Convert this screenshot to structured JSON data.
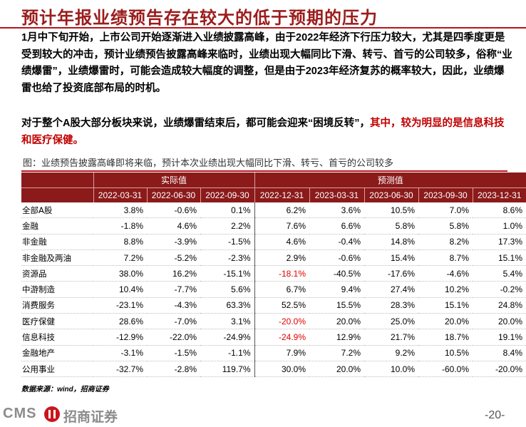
{
  "title": "预计年报业绩预告存在较大的低于预期的压力",
  "paragraph1": "1月中下旬开始，上市公司开始逐渐进入业绩披露高峰，由于2022年经济下行压力较大，尤其是四季度更是受到较大的冲击，预计业绩预告披露高峰来临时，业绩出现大幅同比下滑、转亏、首亏的公司较多，俗称“业绩爆雷”，业绩爆雷时，可能会造成较大幅度的调整，但是由于2023年经济复苏的概率较大，因此，业绩爆雷也给了投资底部布局的时机。",
  "paragraph2_a": "对于整个A股大部分板块来说，业绩爆雷结束后，都可能会迎来“困境反转”，",
  "paragraph2_b": "其中，较为明显的是信息科技和医疗保健。",
  "chart_title": "图：业绩预告披露高峰即将来临，预计本次业绩出现大幅同比下滑、转亏、首亏的公司较多",
  "table": {
    "group_headers": [
      "实际值",
      "预测值"
    ],
    "columns": [
      "2022-03-31",
      "2022-06-30",
      "2022-09-30",
      "2022-12-31",
      "2023-03-31",
      "2023-06-30",
      "2023-09-30",
      "2023-12-31"
    ],
    "rows": [
      {
        "label": "全部A股",
        "values": [
          "3.8%",
          "-0.6%",
          "0.1%",
          "6.2%",
          "3.6%",
          "10.5%",
          "7.0%",
          "8.6%"
        ]
      },
      {
        "label": "金融",
        "values": [
          "-1.8%",
          "4.6%",
          "2.2%",
          "7.6%",
          "6.6%",
          "5.8%",
          "5.8%",
          "1.0%"
        ]
      },
      {
        "label": "非金融",
        "values": [
          "8.8%",
          "-3.9%",
          "-1.5%",
          "4.6%",
          "-0.4%",
          "14.8%",
          "8.2%",
          "17.3%"
        ]
      },
      {
        "label": "非金融及两油",
        "values": [
          "7.2%",
          "-5.2%",
          "-2.3%",
          "2.9%",
          "-0.6%",
          "15.4%",
          "8.7%",
          "15.1%"
        ]
      },
      {
        "label": "资源品",
        "values": [
          "38.0%",
          "16.2%",
          "-15.1%",
          "-18.1%",
          "-40.5%",
          "-17.6%",
          "-4.6%",
          "5.4%"
        ]
      },
      {
        "label": "中游制造",
        "values": [
          "10.4%",
          "-7.7%",
          "5.6%",
          "6.7%",
          "9.4%",
          "27.4%",
          "10.2%",
          "-0.2%"
        ]
      },
      {
        "label": "消费服务",
        "values": [
          "-23.1%",
          "-4.3%",
          "63.3%",
          "52.5%",
          "15.5%",
          "28.3%",
          "15.1%",
          "24.8%"
        ]
      },
      {
        "label": "医疗保健",
        "values": [
          "28.6%",
          "-7.0%",
          "3.1%",
          "-20.0%",
          "20.0%",
          "25.0%",
          "20.0%",
          "20.0%"
        ]
      },
      {
        "label": "信息科技",
        "values": [
          "-12.9%",
          "-22.0%",
          "-24.9%",
          "-24.9%",
          "12.9%",
          "21.7%",
          "18.7%",
          "19.1%"
        ]
      },
      {
        "label": "金融地产",
        "values": [
          "-3.1%",
          "-1.5%",
          "-1.1%",
          "7.9%",
          "7.2%",
          "9.2%",
          "10.5%",
          "8.4%"
        ]
      },
      {
        "label": "公用事业",
        "values": [
          "-32.7%",
          "-2.8%",
          "119.7%",
          "30.0%",
          "20.0%",
          "10.0%",
          "-60.0%",
          "-20.0%"
        ]
      }
    ],
    "highlight_color": "#e00000"
  },
  "source": "数据来源：wind，招商证券",
  "footer": {
    "cms": "CMS",
    "brand": "招商证券",
    "page": "-20-"
  },
  "colors": {
    "title": "#9b1c1c",
    "header_bg": "#8b1a1a",
    "rule": "#b5161c"
  }
}
